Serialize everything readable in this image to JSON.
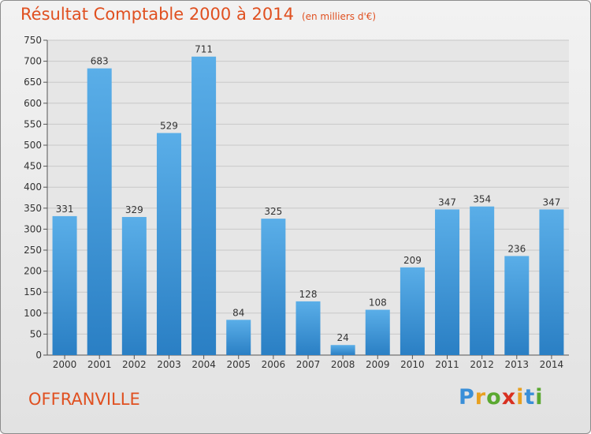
{
  "title": "Résultat Comptable 2000 à 2014",
  "unit": "(en milliers d'€)",
  "town": "OFFRANVILLE",
  "logo": {
    "text": "Proxiti",
    "letters": [
      {
        "char": "P",
        "color": "#3a8fd8"
      },
      {
        "char": "r",
        "color": "#e8a020"
      },
      {
        "char": "o",
        "color": "#5aa830"
      },
      {
        "char": "x",
        "color": "#d83020"
      },
      {
        "char": "i",
        "color": "#e8a020"
      },
      {
        "char": "t",
        "color": "#3a8fd8"
      },
      {
        "char": "i",
        "color": "#5aa830"
      }
    ]
  },
  "colors": {
    "bar_top": "#5aaee8",
    "bar_bottom": "#2a7fc4",
    "accent": "#e05020"
  },
  "chart_data": {
    "type": "bar",
    "categories": [
      "2000",
      "2001",
      "2002",
      "2003",
      "2004",
      "2005",
      "2006",
      "2007",
      "2008",
      "2009",
      "2010",
      "2011",
      "2012",
      "2013",
      "2014"
    ],
    "values": [
      331,
      683,
      329,
      529,
      711,
      84,
      325,
      128,
      24,
      108,
      209,
      347,
      354,
      236,
      347
    ],
    "ylim": [
      0,
      750
    ],
    "yticks": [
      0,
      50,
      100,
      150,
      200,
      250,
      300,
      350,
      400,
      450,
      500,
      550,
      600,
      650,
      700,
      750
    ],
    "grid": true
  }
}
